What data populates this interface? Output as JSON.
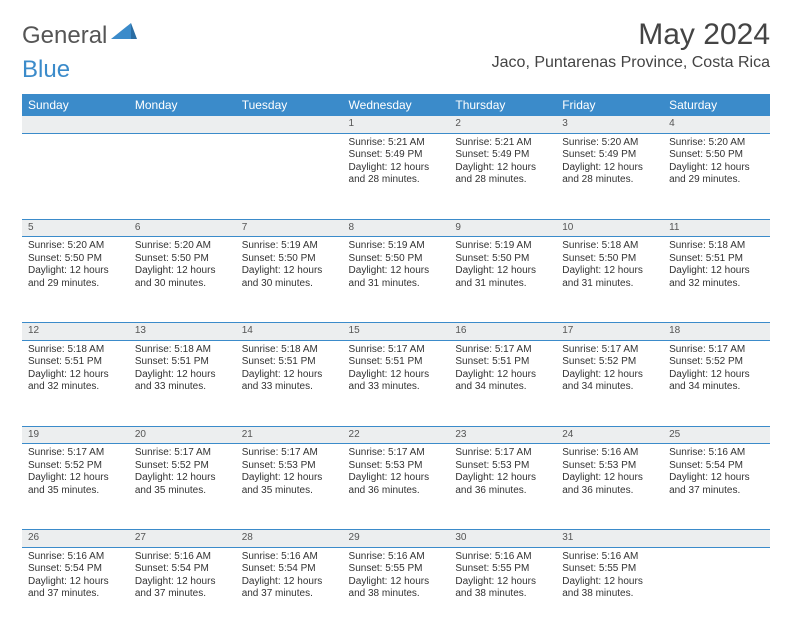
{
  "logo": {
    "text_a": "General",
    "text_b": "Blue",
    "brand_color": "#3b8bca"
  },
  "header": {
    "title": "May 2024",
    "location": "Jaco, Puntarenas Province, Costa Rica"
  },
  "colors": {
    "header_bg": "#3b8bca",
    "daynum_bg": "#eceeef",
    "text": "#333333"
  },
  "weekdays": [
    "Sunday",
    "Monday",
    "Tuesday",
    "Wednesday",
    "Thursday",
    "Friday",
    "Saturday"
  ],
  "weeks": [
    {
      "nums": [
        "",
        "",
        "",
        "1",
        "2",
        "3",
        "4"
      ],
      "cells": [
        null,
        null,
        null,
        {
          "sunrise": "5:21 AM",
          "sunset": "5:49 PM",
          "dayl": "12 hours and 28 minutes."
        },
        {
          "sunrise": "5:21 AM",
          "sunset": "5:49 PM",
          "dayl": "12 hours and 28 minutes."
        },
        {
          "sunrise": "5:20 AM",
          "sunset": "5:49 PM",
          "dayl": "12 hours and 28 minutes."
        },
        {
          "sunrise": "5:20 AM",
          "sunset": "5:50 PM",
          "dayl": "12 hours and 29 minutes."
        }
      ]
    },
    {
      "nums": [
        "5",
        "6",
        "7",
        "8",
        "9",
        "10",
        "11"
      ],
      "cells": [
        {
          "sunrise": "5:20 AM",
          "sunset": "5:50 PM",
          "dayl": "12 hours and 29 minutes."
        },
        {
          "sunrise": "5:20 AM",
          "sunset": "5:50 PM",
          "dayl": "12 hours and 30 minutes."
        },
        {
          "sunrise": "5:19 AM",
          "sunset": "5:50 PM",
          "dayl": "12 hours and 30 minutes."
        },
        {
          "sunrise": "5:19 AM",
          "sunset": "5:50 PM",
          "dayl": "12 hours and 31 minutes."
        },
        {
          "sunrise": "5:19 AM",
          "sunset": "5:50 PM",
          "dayl": "12 hours and 31 minutes."
        },
        {
          "sunrise": "5:18 AM",
          "sunset": "5:50 PM",
          "dayl": "12 hours and 31 minutes."
        },
        {
          "sunrise": "5:18 AM",
          "sunset": "5:51 PM",
          "dayl": "12 hours and 32 minutes."
        }
      ]
    },
    {
      "nums": [
        "12",
        "13",
        "14",
        "15",
        "16",
        "17",
        "18"
      ],
      "cells": [
        {
          "sunrise": "5:18 AM",
          "sunset": "5:51 PM",
          "dayl": "12 hours and 32 minutes."
        },
        {
          "sunrise": "5:18 AM",
          "sunset": "5:51 PM",
          "dayl": "12 hours and 33 minutes."
        },
        {
          "sunrise": "5:18 AM",
          "sunset": "5:51 PM",
          "dayl": "12 hours and 33 minutes."
        },
        {
          "sunrise": "5:17 AM",
          "sunset": "5:51 PM",
          "dayl": "12 hours and 33 minutes."
        },
        {
          "sunrise": "5:17 AM",
          "sunset": "5:51 PM",
          "dayl": "12 hours and 34 minutes."
        },
        {
          "sunrise": "5:17 AM",
          "sunset": "5:52 PM",
          "dayl": "12 hours and 34 minutes."
        },
        {
          "sunrise": "5:17 AM",
          "sunset": "5:52 PM",
          "dayl": "12 hours and 34 minutes."
        }
      ]
    },
    {
      "nums": [
        "19",
        "20",
        "21",
        "22",
        "23",
        "24",
        "25"
      ],
      "cells": [
        {
          "sunrise": "5:17 AM",
          "sunset": "5:52 PM",
          "dayl": "12 hours and 35 minutes."
        },
        {
          "sunrise": "5:17 AM",
          "sunset": "5:52 PM",
          "dayl": "12 hours and 35 minutes."
        },
        {
          "sunrise": "5:17 AM",
          "sunset": "5:53 PM",
          "dayl": "12 hours and 35 minutes."
        },
        {
          "sunrise": "5:17 AM",
          "sunset": "5:53 PM",
          "dayl": "12 hours and 36 minutes."
        },
        {
          "sunrise": "5:17 AM",
          "sunset": "5:53 PM",
          "dayl": "12 hours and 36 minutes."
        },
        {
          "sunrise": "5:16 AM",
          "sunset": "5:53 PM",
          "dayl": "12 hours and 36 minutes."
        },
        {
          "sunrise": "5:16 AM",
          "sunset": "5:54 PM",
          "dayl": "12 hours and 37 minutes."
        }
      ]
    },
    {
      "nums": [
        "26",
        "27",
        "28",
        "29",
        "30",
        "31",
        ""
      ],
      "cells": [
        {
          "sunrise": "5:16 AM",
          "sunset": "5:54 PM",
          "dayl": "12 hours and 37 minutes."
        },
        {
          "sunrise": "5:16 AM",
          "sunset": "5:54 PM",
          "dayl": "12 hours and 37 minutes."
        },
        {
          "sunrise": "5:16 AM",
          "sunset": "5:54 PM",
          "dayl": "12 hours and 37 minutes."
        },
        {
          "sunrise": "5:16 AM",
          "sunset": "5:55 PM",
          "dayl": "12 hours and 38 minutes."
        },
        {
          "sunrise": "5:16 AM",
          "sunset": "5:55 PM",
          "dayl": "12 hours and 38 minutes."
        },
        {
          "sunrise": "5:16 AM",
          "sunset": "5:55 PM",
          "dayl": "12 hours and 38 minutes."
        },
        null
      ]
    }
  ],
  "labels": {
    "sunrise": "Sunrise:",
    "sunset": "Sunset:",
    "daylight": "Daylight:"
  }
}
